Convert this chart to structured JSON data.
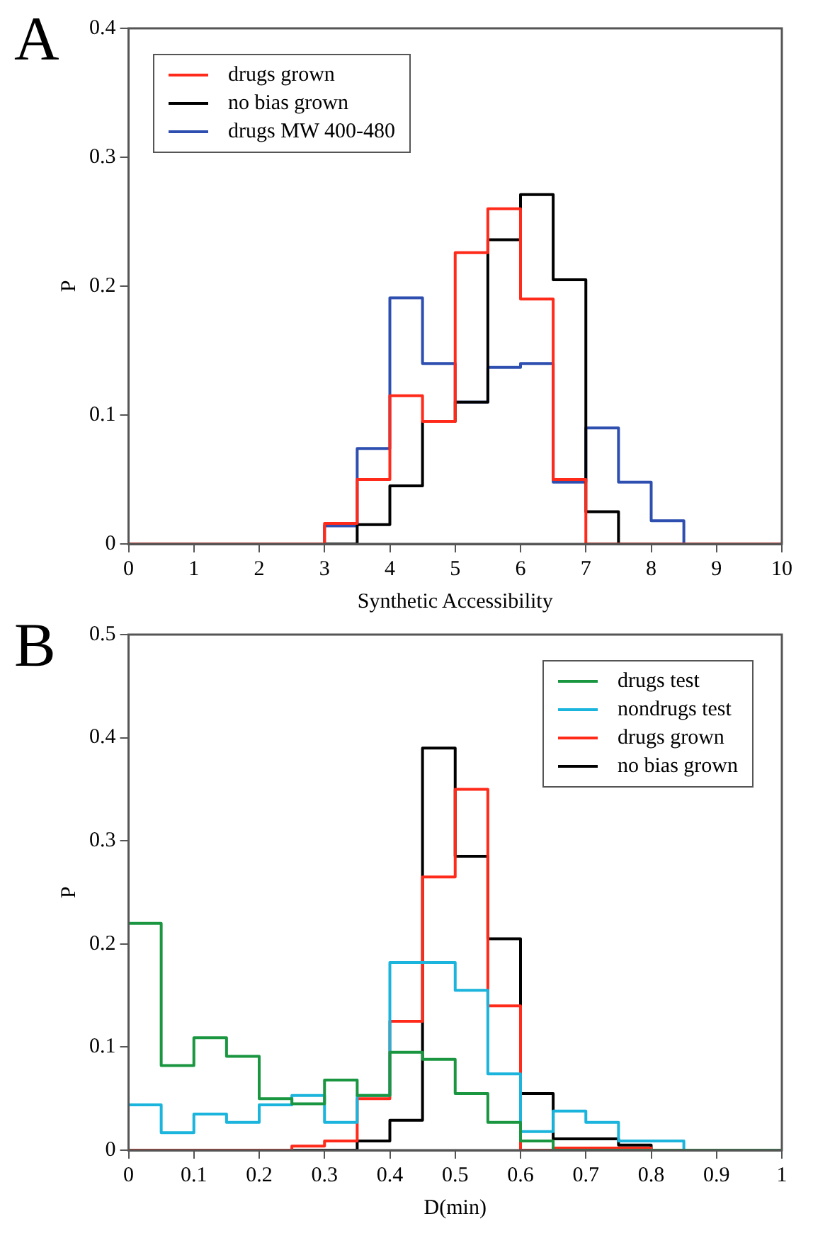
{
  "chart_data": [
    {
      "type": "histogram",
      "title": "A",
      "xlabel": "Synthetic Accessibility",
      "ylabel": "P",
      "bins": [
        0,
        0.5,
        1,
        1.5,
        2,
        2.5,
        3,
        3.5,
        4,
        4.5,
        5,
        5.5,
        6,
        6.5,
        7,
        7.5,
        8,
        8.5,
        9,
        9.5,
        10
      ],
      "xlim": [
        0,
        10
      ],
      "xticks": [
        0,
        1,
        2,
        3,
        4,
        5,
        6,
        7,
        8,
        9,
        10
      ],
      "ylim": [
        0,
        0.4
      ],
      "yticks": [
        0,
        0.1,
        0.2,
        0.3,
        0.4
      ],
      "grid": false,
      "legend": "top left",
      "series": [
        {
          "name": "drugs grown",
          "color": "#ff2a1a",
          "values": [
            0,
            0,
            0,
            0,
            0,
            0,
            0.016,
            0.05,
            0.115,
            0.095,
            0.226,
            0.26,
            0.19,
            0.05,
            0,
            0,
            0,
            0,
            0,
            0
          ]
        },
        {
          "name": "no bias grown",
          "color": "#000000",
          "values": [
            0,
            0,
            0,
            0,
            0,
            0,
            0,
            0.015,
            0.045,
            0.095,
            0.11,
            0.236,
            0.271,
            0.205,
            0.025,
            0,
            0,
            0,
            0,
            0
          ]
        },
        {
          "name": "drugs MW 400-480",
          "color": "#2e4fb0",
          "values": [
            0,
            0,
            0,
            0,
            0,
            0,
            0.014,
            0.074,
            0.191,
            0.14,
            0.11,
            0.137,
            0.14,
            0.048,
            0.09,
            0.048,
            0.018,
            0,
            0,
            0
          ]
        }
      ]
    },
    {
      "type": "histogram",
      "title": "B",
      "xlabel": "D(min)",
      "ylabel": "P",
      "bins": [
        0,
        0.05,
        0.1,
        0.15,
        0.2,
        0.25,
        0.3,
        0.35,
        0.4,
        0.45,
        0.5,
        0.55,
        0.6,
        0.65,
        0.7,
        0.75,
        0.8,
        0.85,
        0.9,
        0.95,
        1
      ],
      "xlim": [
        0,
        1
      ],
      "xticks": [
        0,
        0.1,
        0.2,
        0.3,
        0.4,
        0.5,
        0.6,
        0.7,
        0.8,
        0.9,
        1
      ],
      "ylim": [
        0,
        0.5
      ],
      "yticks": [
        0,
        0.1,
        0.2,
        0.3,
        0.4,
        0.5
      ],
      "grid": false,
      "legend": "top right",
      "series": [
        {
          "name": "drugs test",
          "color": "#1a9641",
          "values": [
            0.22,
            0.082,
            0.109,
            0.091,
            0.05,
            0.045,
            0.068,
            0.053,
            0.095,
            0.088,
            0.055,
            0.027,
            0.009,
            0,
            0,
            0,
            0,
            0,
            0,
            0
          ]
        },
        {
          "name": "nondrugs test",
          "color": "#1ab4dc",
          "values": [
            0.044,
            0.017,
            0.035,
            0.027,
            0.044,
            0.053,
            0.027,
            0.053,
            0.182,
            0.182,
            0.155,
            0.074,
            0.018,
            0.038,
            0.027,
            0.009,
            0.009,
            0,
            0,
            0
          ]
        },
        {
          "name": "drugs grown",
          "color": "#ff2a1a",
          "values": [
            0,
            0,
            0,
            0,
            0,
            0.004,
            0.009,
            0.05,
            0.125,
            0.265,
            0.35,
            0.14,
            0,
            0.002,
            0.002,
            0.002,
            0,
            0,
            0,
            0
          ]
        },
        {
          "name": "no bias grown",
          "color": "#000000",
          "values": [
            0,
            0,
            0,
            0,
            0,
            0,
            0,
            0.009,
            0.029,
            0.39,
            0.285,
            0.205,
            0.055,
            0.011,
            0.011,
            0.005,
            0,
            0,
            0,
            0
          ]
        }
      ]
    }
  ]
}
